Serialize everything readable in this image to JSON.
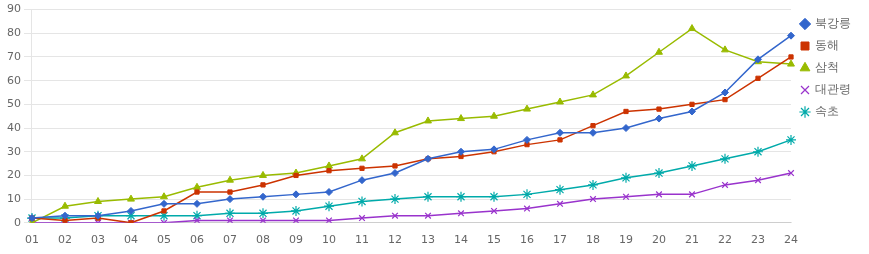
{
  "chart_data": {
    "type": "line",
    "categories": [
      "01",
      "02",
      "03",
      "04",
      "05",
      "06",
      "07",
      "08",
      "09",
      "10",
      "11",
      "12",
      "13",
      "14",
      "15",
      "16",
      "17",
      "18",
      "19",
      "20",
      "21",
      "22",
      "23",
      "24"
    ],
    "series": [
      {
        "name": "북강릉",
        "color": "#3366CC",
        "marker": "diamond",
        "values": [
          2,
          3,
          3,
          5,
          8,
          8,
          10,
          11,
          12,
          13,
          18,
          21,
          27,
          30,
          31,
          35,
          38,
          38,
          40,
          44,
          47,
          55,
          69,
          79
        ]
      },
      {
        "name": "동해",
        "color": "#CC3300",
        "marker": "square",
        "values": [
          2,
          1,
          2,
          0,
          5,
          13,
          13,
          16,
          20,
          22,
          23,
          24,
          27,
          28,
          30,
          33,
          35,
          41,
          47,
          48,
          50,
          52,
          61,
          70
        ]
      },
      {
        "name": "삼척",
        "color": "#99BB00",
        "marker": "triangle",
        "values": [
          0,
          7,
          9,
          10,
          11,
          15,
          18,
          20,
          21,
          24,
          27,
          38,
          43,
          44,
          45,
          48,
          51,
          54,
          62,
          72,
          82,
          73,
          68,
          67
        ]
      },
      {
        "name": "대관령",
        "color": "#9933CC",
        "marker": "x",
        "values": [
          0,
          0,
          0,
          0,
          0,
          1,
          1,
          1,
          1,
          1,
          2,
          3,
          3,
          4,
          5,
          6,
          8,
          10,
          11,
          12,
          12,
          16,
          18,
          21
        ]
      },
      {
        "name": "속초",
        "color": "#00AAAA",
        "marker": "star",
        "values": [
          2,
          2,
          3,
          3,
          3,
          3,
          4,
          4,
          5,
          7,
          9,
          10,
          11,
          11,
          11,
          12,
          14,
          16,
          19,
          21,
          24,
          27,
          30,
          35
        ]
      }
    ],
    "ylim": [
      0,
      90
    ],
    "yticks": [
      0,
      10,
      20,
      30,
      40,
      50,
      60,
      70,
      80,
      90
    ],
    "grid": true,
    "legend": "right"
  }
}
